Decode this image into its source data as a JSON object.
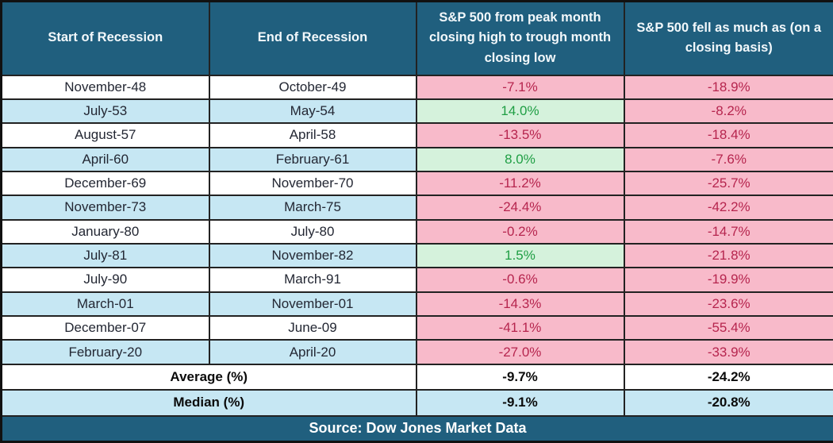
{
  "chart_data": {
    "type": "table",
    "columns": [
      "Start of Recession",
      "End of Recession",
      "S&P 500 from peak month closing high to trough month closing low",
      "S&P 500 fell as much as (on a closing basis)"
    ],
    "rows": [
      [
        "November-48",
        "October-49",
        "-7.1%",
        "-18.9%"
      ],
      [
        "July-53",
        "May-54",
        "14.0%",
        "-8.2%"
      ],
      [
        "August-57",
        "April-58",
        "-13.5%",
        "-18.4%"
      ],
      [
        "April-60",
        "February-61",
        "8.0%",
        "-7.6%"
      ],
      [
        "December-69",
        "November-70",
        "-11.2%",
        "-25.7%"
      ],
      [
        "November-73",
        "March-75",
        "-24.4%",
        "-42.2%"
      ],
      [
        "January-80",
        "July-80",
        "-0.2%",
        "-14.7%"
      ],
      [
        "July-81",
        "November-82",
        "1.5%",
        "-21.8%"
      ],
      [
        "July-90",
        "March-91",
        "-0.6%",
        "-19.9%"
      ],
      [
        "March-01",
        "November-01",
        "-14.3%",
        "-23.6%"
      ],
      [
        "December-07",
        "June-09",
        "-41.1%",
        "-55.4%"
      ],
      [
        "February-20",
        "April-20",
        "-27.0%",
        "-33.9%"
      ]
    ],
    "summary_rows": [
      {
        "label": "Average (%)",
        "values": [
          "-9.7%",
          "-24.2%"
        ]
      },
      {
        "label": "Median (%)",
        "values": [
          "-9.1%",
          "-20.8%"
        ]
      }
    ],
    "source": "Source: Dow Jones Market Data"
  },
  "colors": {
    "header_bg": "#205F7E",
    "header_text": "#F2F8FB",
    "row_bg": "#FFFFFF",
    "row_alt_bg": "#C6E7F3",
    "negative_bg": "#F8BACA",
    "negative_text": "#B6254E",
    "positive_bg": "#D5F2DC",
    "positive_text": "#1F9E44",
    "border": "#222222"
  }
}
